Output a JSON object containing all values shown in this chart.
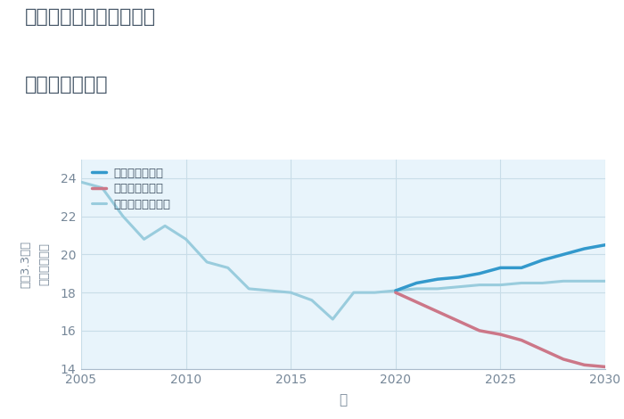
{
  "title_line1": "三重県桑名市清竹の丘の",
  "title_line2": "土地の価格推移",
  "xlabel": "年",
  "ylabel": "単価（万円）",
  "ylabel2": "平（3.3㎡）",
  "xlim": [
    2005,
    2030
  ],
  "ylim": [
    14,
    25
  ],
  "yticks": [
    14,
    16,
    18,
    20,
    22,
    24
  ],
  "xticks": [
    2005,
    2010,
    2015,
    2020,
    2025,
    2030
  ],
  "fig_bg_color": "#ffffff",
  "plot_bg_color": "#e8f4fb",
  "good_color": "#3399cc",
  "bad_color": "#cc7788",
  "normal_color": "#99ccdd",
  "good_label": "グッドシナリオ",
  "bad_label": "バッドシナリオ",
  "normal_label": "ノーマルシナリオ",
  "historical_years": [
    2005,
    2006,
    2007,
    2008,
    2009,
    2010,
    2011,
    2012,
    2013,
    2014,
    2015,
    2016,
    2017,
    2018,
    2019,
    2020
  ],
  "historical_values": [
    23.8,
    23.5,
    22.0,
    20.8,
    21.5,
    20.8,
    19.6,
    19.3,
    18.2,
    18.1,
    18.0,
    17.6,
    16.6,
    18.0,
    18.0,
    18.1
  ],
  "good_years": [
    2020,
    2021,
    2022,
    2023,
    2024,
    2025,
    2026,
    2027,
    2028,
    2029,
    2030
  ],
  "good_values": [
    18.1,
    18.5,
    18.7,
    18.8,
    19.0,
    19.3,
    19.3,
    19.7,
    20.0,
    20.3,
    20.5
  ],
  "bad_years": [
    2020,
    2021,
    2022,
    2023,
    2024,
    2025,
    2026,
    2027,
    2028,
    2029,
    2030
  ],
  "bad_values": [
    18.0,
    17.5,
    17.0,
    16.5,
    16.0,
    15.8,
    15.5,
    15.0,
    14.5,
    14.2,
    14.1
  ],
  "normal_years": [
    2020,
    2021,
    2022,
    2023,
    2024,
    2025,
    2026,
    2027,
    2028,
    2029,
    2030
  ],
  "normal_values": [
    18.1,
    18.2,
    18.2,
    18.3,
    18.4,
    18.4,
    18.5,
    18.5,
    18.6,
    18.6,
    18.6
  ],
  "title_color": "#445566",
  "tick_color": "#778899",
  "grid_color": "#c8dde8",
  "legend_text_color": "#445566",
  "spine_color": "#aabbcc"
}
